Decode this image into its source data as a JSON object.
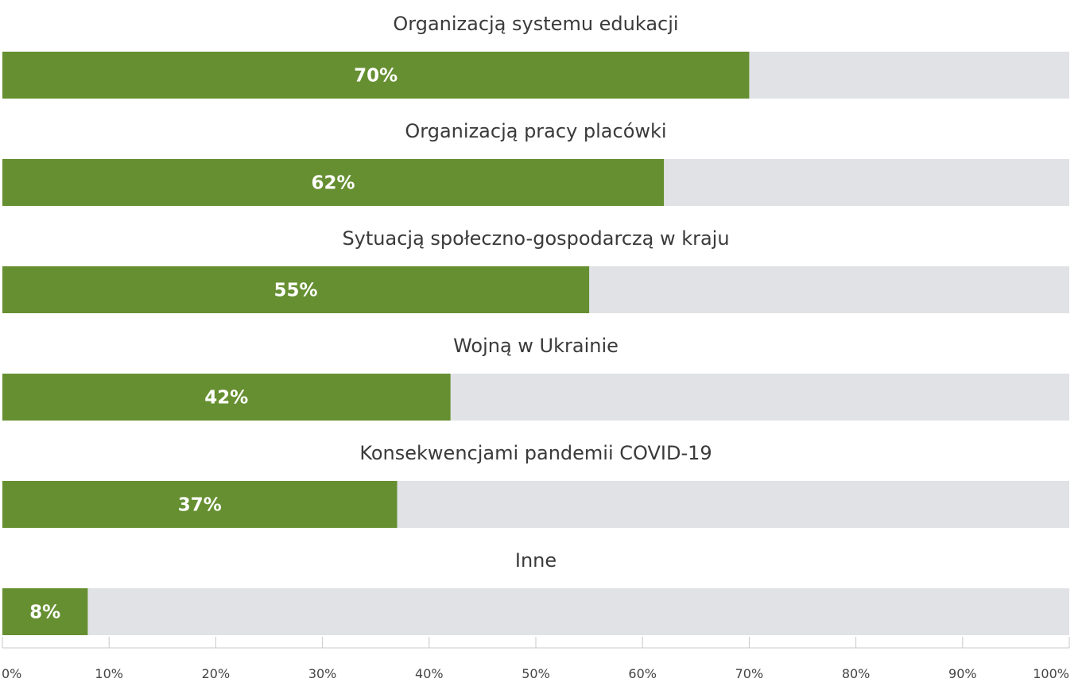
{
  "chart_data": {
    "type": "bar",
    "orientation": "horizontal",
    "categories": [
      "Organizacją systemu edukacji",
      "Organizacją pracy placówki",
      "Sytuacją społeczno-gospodarczą w kraju",
      "Wojną w Ukrainie",
      "Konsekwencjami pandemii COVID-19",
      "Inne"
    ],
    "values": [
      70,
      62,
      55,
      42,
      37,
      8
    ],
    "value_labels": [
      "70%",
      "62%",
      "55%",
      "42%",
      "37%",
      "8%"
    ],
    "xlim": [
      0,
      100
    ],
    "xticks": [
      0,
      10,
      20,
      30,
      40,
      50,
      60,
      70,
      80,
      90,
      100
    ],
    "xtick_labels": [
      "0%",
      "10%",
      "20%",
      "30%",
      "40%",
      "50%",
      "60%",
      "70%",
      "80%",
      "90%",
      "100%"
    ],
    "legend": "none",
    "grid": false,
    "colors": {
      "bar": "#668f31",
      "track": "#e0e2e6",
      "axis": "#c8c8c8"
    }
  }
}
